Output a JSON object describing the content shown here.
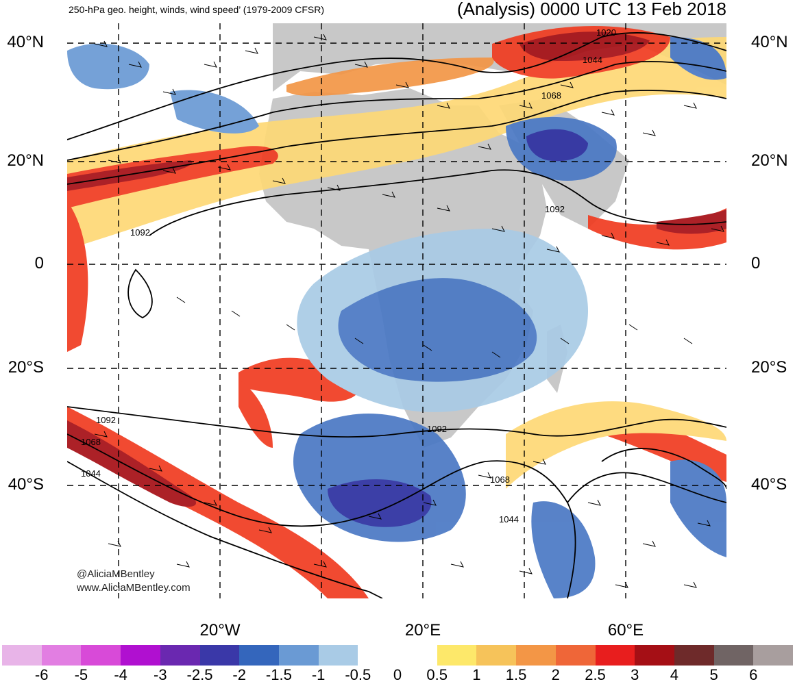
{
  "header": {
    "left_title": "250-hPa geo. height, winds, wind speed’ (1979-2009 CFSR)",
    "right_title": "(Analysis) 0000 UTC 13 Feb 2018"
  },
  "map": {
    "latitude_labels": [
      "40°N",
      "20°N",
      "0",
      "20°S",
      "40°S"
    ],
    "longitude_labels": [
      "20°W",
      "20°E",
      "60°E"
    ],
    "contour_labels": [
      "1020",
      "1044",
      "1068",
      "1092",
      "1092",
      "1092",
      "1092",
      "1068",
      "1044",
      "1068",
      "1044"
    ],
    "credit_handle": "@AliciaMBentley",
    "credit_url": "www.AliciaMBentley.com",
    "colors": {
      "land": "#c8c8c8",
      "strong_positive": "#a50f15",
      "positive": "#f03b20",
      "weak_positive": "#fed976",
      "negative": "#4a78c4",
      "strong_negative": "#2c2fa0",
      "weak_negative": "#a9cbe6"
    }
  },
  "colorbar": {
    "colors": [
      "#e8b4e8",
      "#e27ee2",
      "#d84ad8",
      "#b010d0",
      "#6a28b0",
      "#3a38a8",
      "#3466bc",
      "#6a9ad4",
      "#a9cbe6",
      "#ffffff",
      "#ffffff",
      "#fde86a",
      "#f6c35a",
      "#f39646",
      "#ef6638",
      "#e81e1e",
      "#a50f15",
      "#6e2a2a",
      "#706464",
      "#a89e9e"
    ],
    "tick_labels": [
      "-6",
      "-5",
      "-4",
      "-3",
      "-2.5",
      "-2",
      "-1.5",
      "-1",
      "-0.5",
      "0",
      "0.5",
      "1",
      "1.5",
      "2",
      "2.5",
      "3",
      "4",
      "5",
      "6"
    ]
  }
}
